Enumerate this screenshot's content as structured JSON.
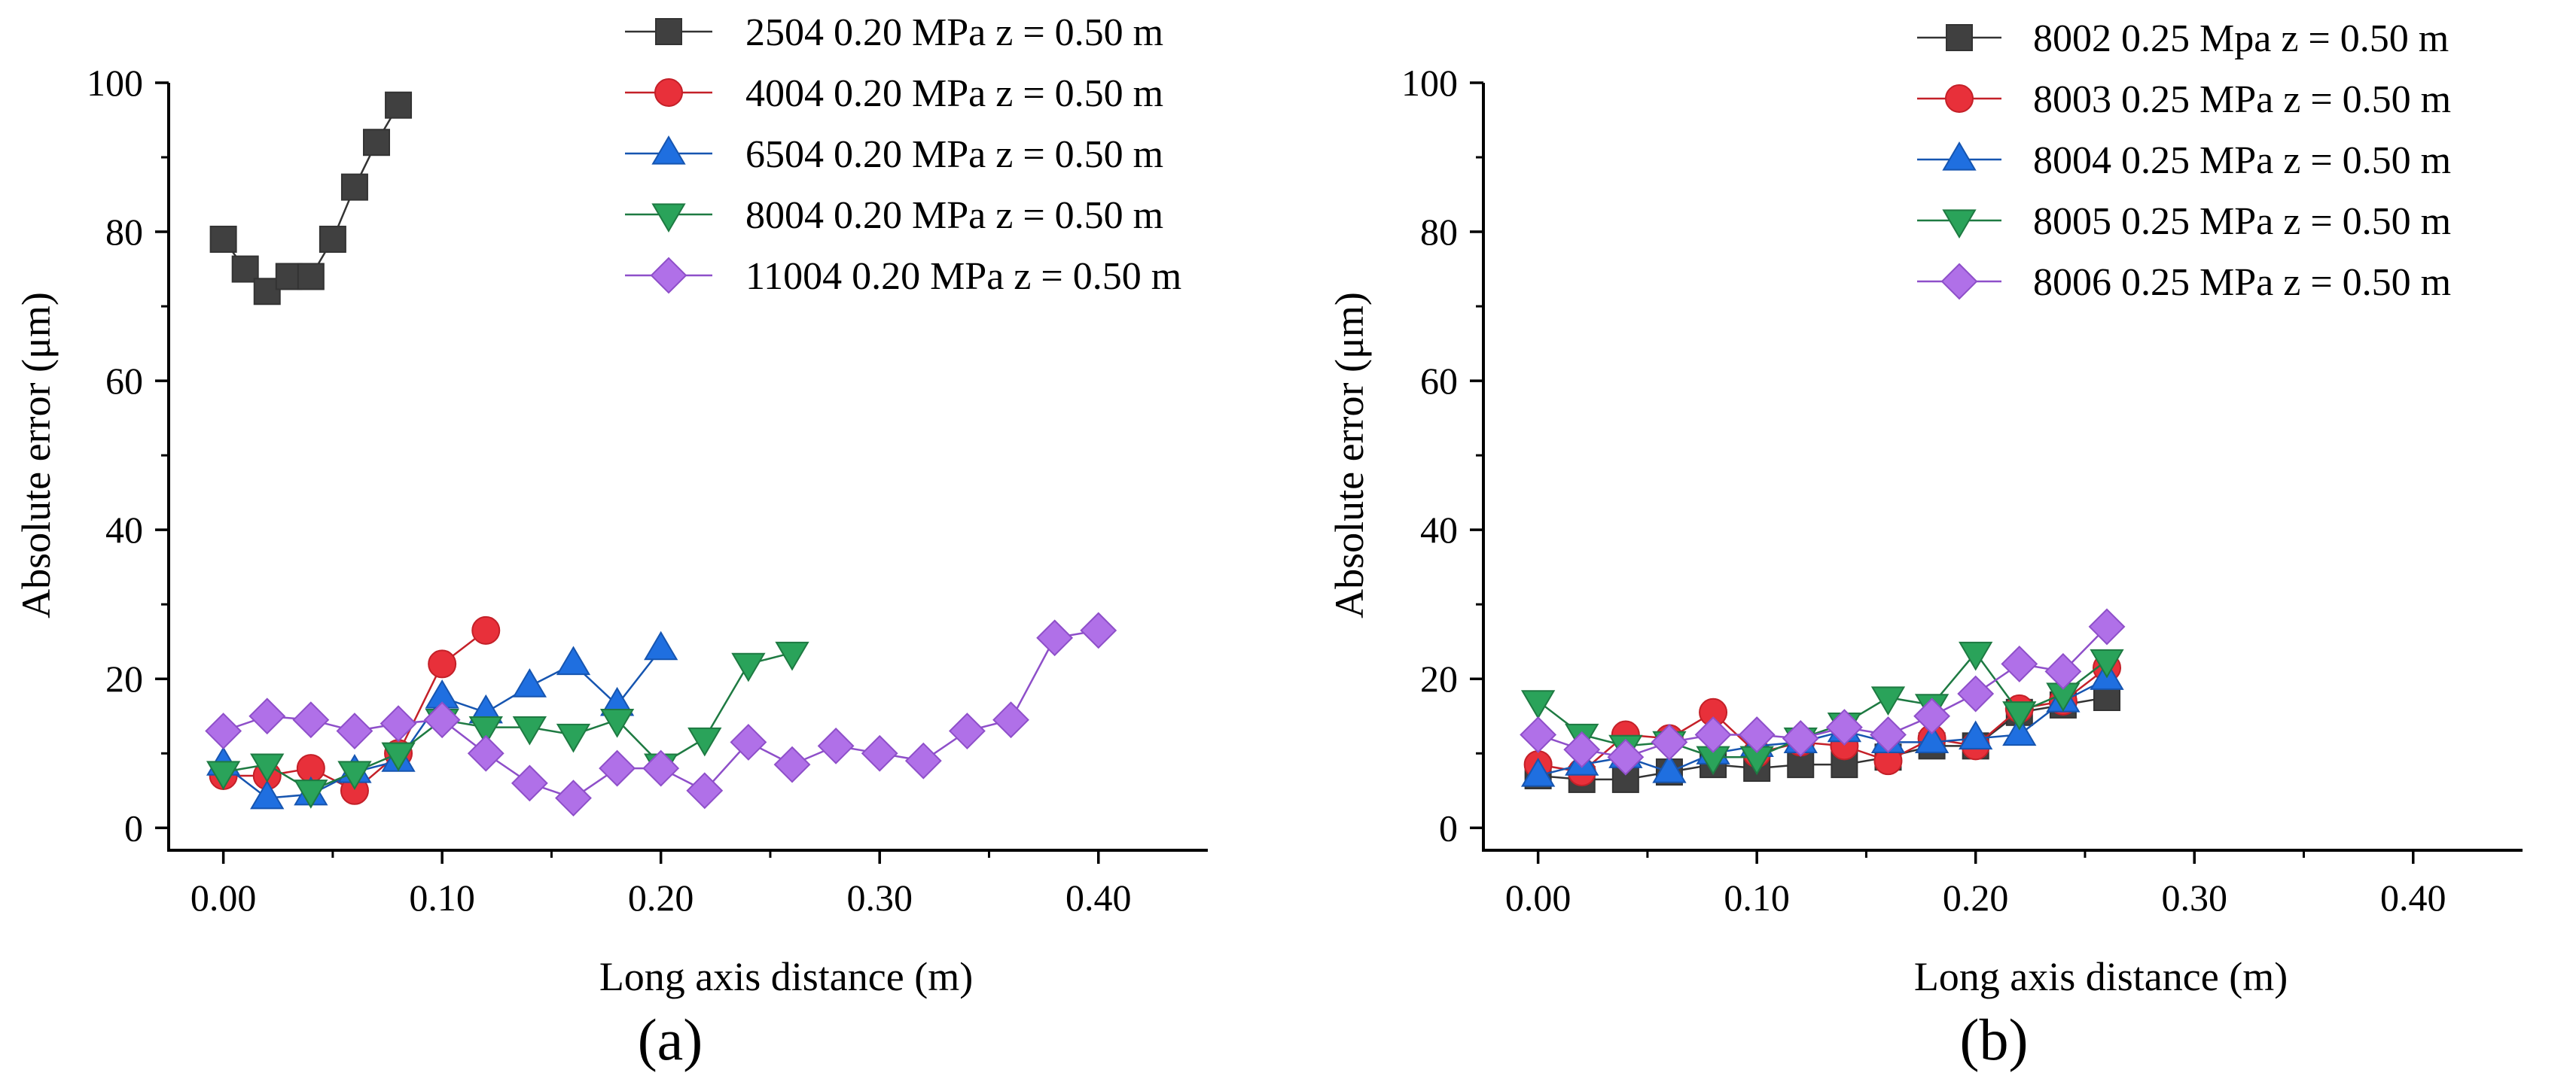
{
  "figure_labels": {
    "a": "(a)",
    "b": "(b)"
  },
  "chart_data": [
    {
      "type": "line",
      "panel": "(a)",
      "xlabel": "Long axis distance (m)",
      "ylabel": "Absolute error (μm)",
      "xlim": [
        -0.025,
        0.45
      ],
      "ylim": [
        -3,
        100
      ],
      "xticks": [
        0.0,
        0.1,
        0.2,
        0.3,
        0.4
      ],
      "xtick_labels": [
        "0.00",
        "0.10",
        "0.20",
        "0.30",
        "0.40"
      ],
      "yticks": [
        0,
        20,
        40,
        60,
        80,
        100
      ],
      "ytick_labels": [
        "0",
        "20",
        "40",
        "60",
        "80",
        "100"
      ],
      "legend_position": "top-right",
      "series": [
        {
          "name": "2504 0.20 MPa z = 0.50 m",
          "color": "#404040",
          "edge": "#333333",
          "marker": "square",
          "x": [
            0.0,
            0.01,
            0.02,
            0.03,
            0.04,
            0.05,
            0.06,
            0.07,
            0.08
          ],
          "y": [
            79,
            75,
            72,
            74,
            74,
            79,
            86,
            92,
            97
          ]
        },
        {
          "name": "4004 0.20 MPa z = 0.50 m",
          "color": "#e8303a",
          "edge": "#c42028",
          "marker": "circle",
          "x": [
            0.0,
            0.02,
            0.04,
            0.06,
            0.08,
            0.1,
            0.12
          ],
          "y": [
            7,
            7,
            8,
            5,
            10,
            22,
            26.5
          ]
        },
        {
          "name": "6504 0.20 MPa z = 0.50 m",
          "color": "#1f6fe0",
          "edge": "#1655b0",
          "marker": "triangle-up",
          "x": [
            0.0,
            0.02,
            0.04,
            0.06,
            0.08,
            0.1,
            0.12,
            0.14,
            0.16,
            0.18,
            0.2
          ],
          "y": [
            8.5,
            4,
            4.5,
            7.5,
            9,
            17.5,
            15.5,
            19,
            22,
            16.5,
            24
          ]
        },
        {
          "name": "8004 0.20 MPa z = 0.50 m",
          "color": "#2aa35a",
          "edge": "#1e7a42",
          "marker": "triangle-down",
          "x": [
            0.0,
            0.02,
            0.04,
            0.06,
            0.08,
            0.1,
            0.12,
            0.14,
            0.16,
            0.18,
            0.2,
            0.22,
            0.24,
            0.26
          ],
          "y": [
            7.5,
            8.5,
            5,
            7.5,
            10,
            14.5,
            13.5,
            13.5,
            12.5,
            14.5,
            8.5,
            12,
            22,
            23.5
          ]
        },
        {
          "name": "11004 0.20 MPa z = 0.50 m",
          "color": "#b070e8",
          "edge": "#8e4fc9",
          "marker": "diamond",
          "x": [
            0.0,
            0.02,
            0.04,
            0.06,
            0.08,
            0.1,
            0.12,
            0.14,
            0.16,
            0.18,
            0.2,
            0.22,
            0.24,
            0.26,
            0.28,
            0.3,
            0.32,
            0.34,
            0.36,
            0.38,
            0.4
          ],
          "y": [
            13,
            15,
            14.5,
            13,
            14,
            14.5,
            10,
            6,
            4,
            8,
            8,
            5,
            11.5,
            8.5,
            11,
            10,
            9,
            13,
            14.5,
            25.5,
            26.5
          ]
        }
      ]
    },
    {
      "type": "line",
      "panel": "(b)",
      "xlabel": "Long axis distance (m)",
      "ylabel": "Absolute error (μm)",
      "xlim": [
        -0.025,
        0.45
      ],
      "ylim": [
        -3,
        100
      ],
      "xticks": [
        0.0,
        0.1,
        0.2,
        0.3,
        0.4
      ],
      "xtick_labels": [
        "0.00",
        "0.10",
        "0.20",
        "0.30",
        "0.40"
      ],
      "yticks": [
        0,
        20,
        40,
        60,
        80,
        100
      ],
      "ytick_labels": [
        "0",
        "20",
        "40",
        "60",
        "80",
        "100"
      ],
      "legend_position": "top-right",
      "series": [
        {
          "name": "8002 0.25 Mpa z = 0.50 m",
          "color": "#404040",
          "edge": "#333333",
          "marker": "square",
          "x": [
            0.0,
            0.02,
            0.04,
            0.06,
            0.08,
            0.1,
            0.12,
            0.14,
            0.16,
            0.18,
            0.2,
            0.22,
            0.24,
            0.26
          ],
          "y": [
            7,
            6.5,
            6.5,
            7.5,
            8.5,
            8,
            8.5,
            8.5,
            9.5,
            11,
            11,
            15.5,
            16.5,
            17.5
          ]
        },
        {
          "name": "8003 0.25 MPa z = 0.50 m",
          "color": "#e8303a",
          "edge": "#c42028",
          "marker": "circle",
          "x": [
            0.0,
            0.02,
            0.04,
            0.06,
            0.08,
            0.1,
            0.12,
            0.14,
            0.16,
            0.18,
            0.2,
            0.22,
            0.24,
            0.26
          ],
          "y": [
            8.5,
            7.5,
            12.5,
            12,
            15.5,
            10,
            11.5,
            11,
            9,
            12,
            11,
            16,
            17,
            21.5
          ]
        },
        {
          "name": "8004 0.25 MPa z = 0.50 m",
          "color": "#1f6fe0",
          "edge": "#1655b0",
          "marker": "triangle-up",
          "x": [
            0.0,
            0.02,
            0.04,
            0.06,
            0.08,
            0.1,
            0.12,
            0.14,
            0.16,
            0.18,
            0.2,
            0.22,
            0.24,
            0.26
          ],
          "y": [
            7,
            8.5,
            9.5,
            7.5,
            10,
            11,
            11.5,
            13,
            11.5,
            11.5,
            12,
            12.5,
            17,
            20
          ]
        },
        {
          "name": "8005 0.25 MPa z = 0.50 m",
          "color": "#2aa35a",
          "edge": "#1e7a42",
          "marker": "triangle-down",
          "x": [
            0.0,
            0.02,
            0.04,
            0.06,
            0.08,
            0.1,
            0.12,
            0.14,
            0.16,
            0.18,
            0.2,
            0.22,
            0.24,
            0.26
          ],
          "y": [
            17,
            12.5,
            11,
            11.5,
            9.5,
            9.5,
            12,
            14,
            17.5,
            16.5,
            23.5,
            15.5,
            18,
            22.5
          ]
        },
        {
          "name": "8006 0.25 MPa z = 0.50 m",
          "color": "#b070e8",
          "edge": "#8e4fc9",
          "marker": "diamond",
          "x": [
            0.0,
            0.02,
            0.04,
            0.06,
            0.08,
            0.1,
            0.12,
            0.14,
            0.16,
            0.18,
            0.2,
            0.22,
            0.24,
            0.26
          ],
          "y": [
            12.5,
            10.5,
            9.5,
            11.5,
            12.5,
            12.5,
            12,
            13.5,
            12.5,
            15,
            18,
            22,
            21,
            27
          ]
        }
      ]
    }
  ]
}
